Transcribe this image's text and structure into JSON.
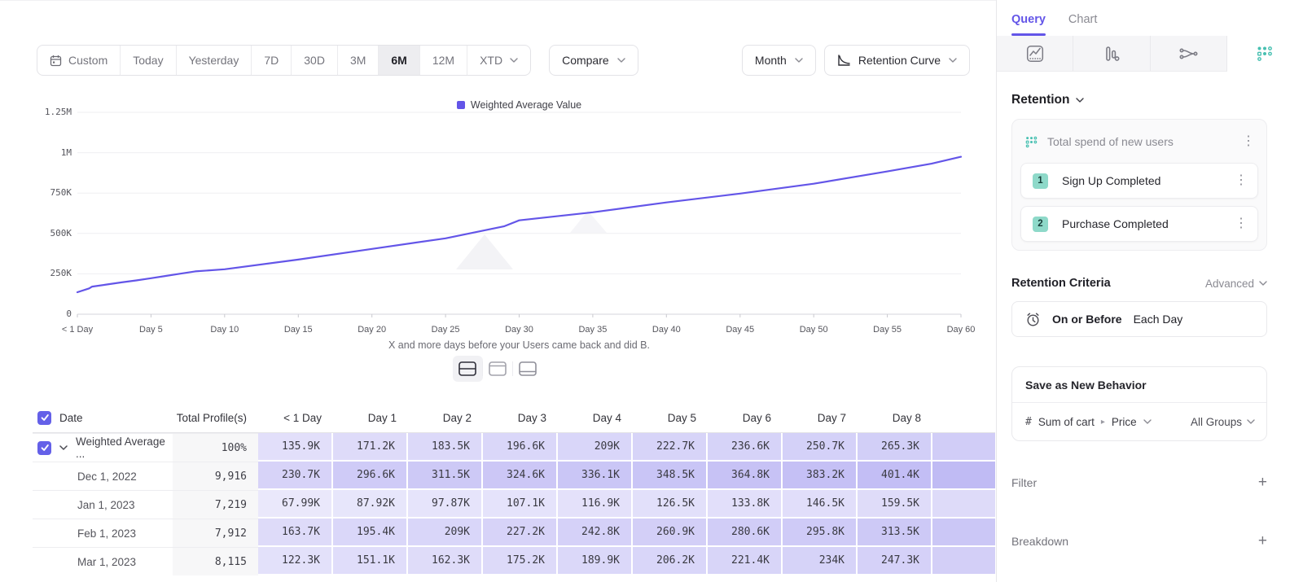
{
  "colors": {
    "accent": "#6355e8",
    "teal": "#47c0b1",
    "cell_rgb": "97,84,228"
  },
  "toolbar": {
    "ranges": [
      {
        "label": "Custom",
        "icon": "calendar"
      },
      {
        "label": "Today"
      },
      {
        "label": "Yesterday"
      },
      {
        "label": "7D"
      },
      {
        "label": "30D"
      },
      {
        "label": "3M"
      },
      {
        "label": "6M",
        "active": true
      },
      {
        "label": "12M"
      },
      {
        "label": "XTD",
        "chevron": true
      }
    ],
    "compare_label": "Compare",
    "granularity_label": "Month",
    "chart_type_label": "Retention Curve"
  },
  "chart_data": {
    "type": "line",
    "legend_position": "top-center",
    "grid": true,
    "units": "K",
    "ylim": [
      0,
      1250
    ],
    "series": [
      {
        "name": "Weighted Average Value",
        "color": "#6355e8",
        "points": [
          [
            0,
            136
          ],
          [
            0.8,
            160
          ],
          [
            1,
            171
          ],
          [
            2,
            184
          ],
          [
            3,
            197
          ],
          [
            4,
            209
          ],
          [
            5,
            223
          ],
          [
            6,
            237
          ],
          [
            7,
            251
          ],
          [
            8,
            265
          ],
          [
            10,
            278
          ],
          [
            15,
            338
          ],
          [
            20,
            404
          ],
          [
            25,
            470
          ],
          [
            29,
            545
          ],
          [
            30,
            581
          ],
          [
            35,
            631
          ],
          [
            40,
            692
          ],
          [
            45,
            747
          ],
          [
            50,
            808
          ],
          [
            55,
            884
          ],
          [
            58,
            932
          ],
          [
            60,
            975
          ]
        ]
      }
    ],
    "y_ticks": [
      {
        "v": 0,
        "label": "0"
      },
      {
        "v": 250,
        "label": "250K"
      },
      {
        "v": 500,
        "label": "500K"
      },
      {
        "v": 750,
        "label": "750K"
      },
      {
        "v": 1000,
        "label": "1M"
      },
      {
        "v": 1250,
        "label": "1.25M"
      }
    ],
    "x_ticks": [
      {
        "day": 0,
        "label": "< 1 Day"
      },
      {
        "day": 5,
        "label": "Day 5"
      },
      {
        "day": 10,
        "label": "Day 10"
      },
      {
        "day": 15,
        "label": "Day 15"
      },
      {
        "day": 20,
        "label": "Day 20"
      },
      {
        "day": 25,
        "label": "Day 25"
      },
      {
        "day": 30,
        "label": "Day 30"
      },
      {
        "day": 35,
        "label": "Day 35"
      },
      {
        "day": 40,
        "label": "Day 40"
      },
      {
        "day": 45,
        "label": "Day 45"
      },
      {
        "day": 50,
        "label": "Day 50"
      },
      {
        "day": 55,
        "label": "Day 55"
      },
      {
        "day": 60,
        "label": "Day 60"
      }
    ],
    "xlabel": "X and more days before your Users came back and did B."
  },
  "view_toggles": [
    {
      "name": "split-view",
      "active": true
    },
    {
      "name": "chart-only",
      "active": false
    },
    {
      "name": "table-only",
      "active": false
    }
  ],
  "table": {
    "header": {
      "date": "Date",
      "total": "Total Profile(s)",
      "days": [
        "< 1 Day",
        "Day 1",
        "Day 2",
        "Day 3",
        "Day 4",
        "Day 5",
        "Day 6",
        "Day 7",
        "Day 8"
      ]
    },
    "rows": [
      {
        "label": "Weighted Average ...",
        "checkbox": true,
        "chevron": true,
        "total": "100%",
        "values": [
          "135.9K",
          "171.2K",
          "183.5K",
          "196.6K",
          "209K",
          "222.7K",
          "236.6K",
          "250.7K",
          "265.3K"
        ],
        "partial": "#d1cdf7"
      },
      {
        "label": "Dec 1, 2022",
        "total": "9,916",
        "values": [
          "230.7K",
          "296.6K",
          "311.5K",
          "324.6K",
          "336.1K",
          "348.5K",
          "364.8K",
          "383.2K",
          "401.4K"
        ],
        "partial": "#c0bbf4"
      },
      {
        "label": "Jan 1, 2023",
        "total": "7,219",
        "values": [
          "67.99K",
          "87.92K",
          "97.87K",
          "107.1K",
          "116.9K",
          "126.5K",
          "133.8K",
          "146.5K",
          "159.5K"
        ],
        "partial": "#dedbf9"
      },
      {
        "label": "Feb 1, 2023",
        "total": "7,912",
        "values": [
          "163.7K",
          "195.4K",
          "209K",
          "227.2K",
          "242.8K",
          "260.9K",
          "280.6K",
          "295.8K",
          "313.5K"
        ],
        "partial": "#cbc7f6"
      },
      {
        "label": "Mar 1, 2023",
        "total": "8,115",
        "values": [
          "122.3K",
          "151.1K",
          "162.3K",
          "175.2K",
          "189.9K",
          "206.2K",
          "221.4K",
          "234K",
          "247.3K"
        ],
        "partial": "#d3cff7"
      }
    ]
  },
  "panel": {
    "tabs": [
      {
        "label": "Query",
        "active": true
      },
      {
        "label": "Chart",
        "active": false
      }
    ],
    "icon_tabs": [
      {
        "name": "insights",
        "active": false
      },
      {
        "name": "funnels",
        "active": false
      },
      {
        "name": "flows",
        "active": false
      },
      {
        "name": "retention",
        "active": true
      }
    ],
    "section_label": "Retention",
    "behavior": {
      "title": "Total spend of new users",
      "steps": [
        {
          "num": "1",
          "label": "Sign Up Completed"
        },
        {
          "num": "2",
          "label": "Purchase Completed"
        }
      ]
    },
    "criteria": {
      "label": "Retention Criteria",
      "mode": "Advanced",
      "condition_bold": "On or Before",
      "condition": "Each Day"
    },
    "save_button_label": "Save as New Behavior",
    "measure": {
      "symbol": "#",
      "property": "Sum of cart",
      "subproperty": "Price",
      "groups": "All Groups"
    },
    "filter_label": "Filter",
    "breakdown_label": "Breakdown"
  }
}
